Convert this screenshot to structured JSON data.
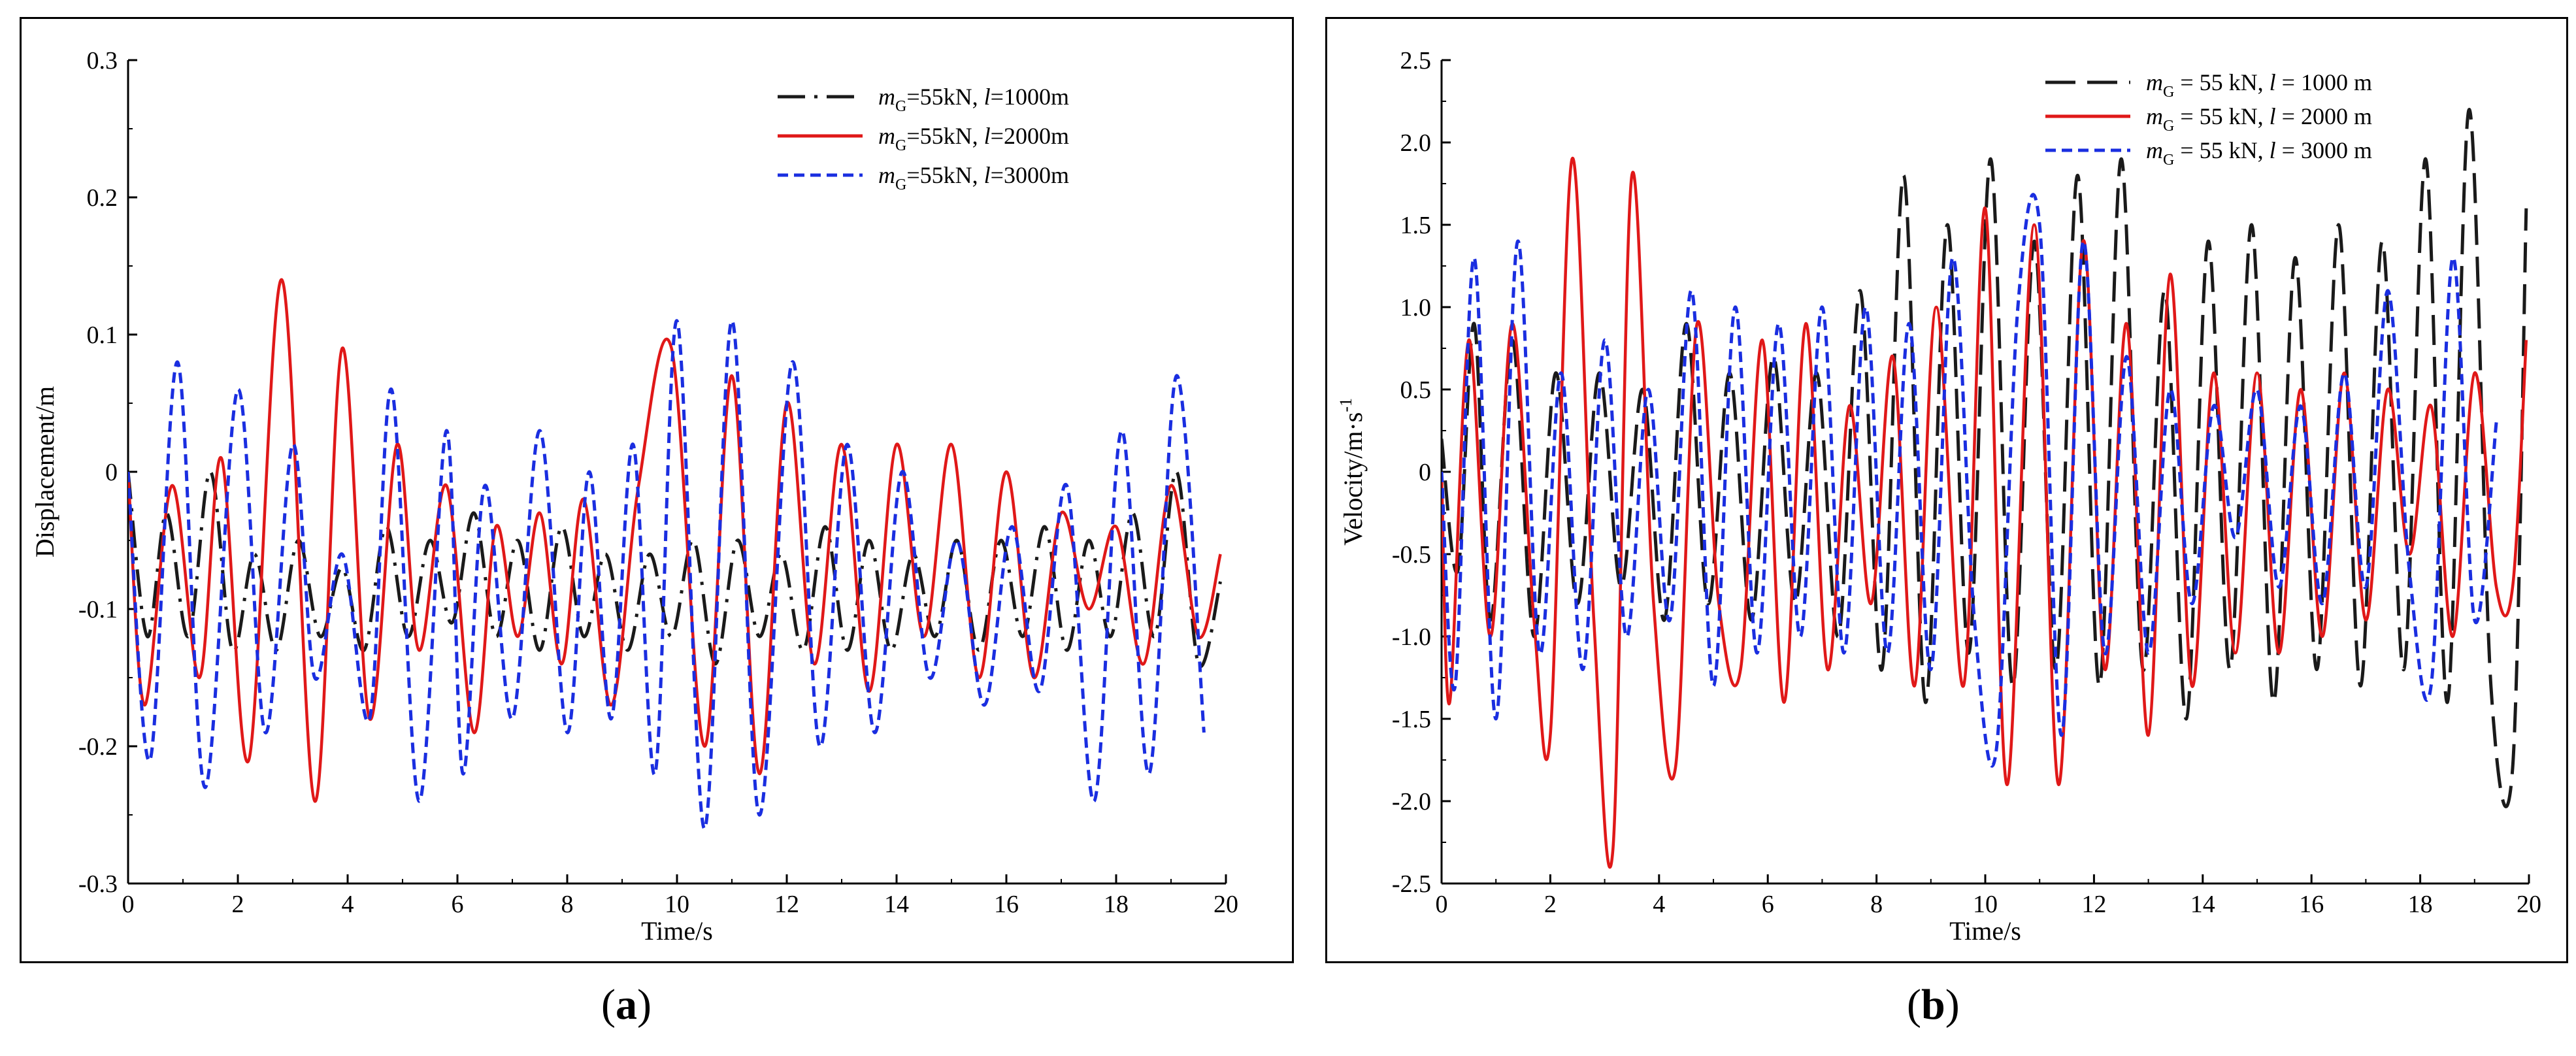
{
  "chart_data": [
    {
      "panel": "a",
      "type": "line",
      "xlabel": "Time/s",
      "ylabel": "Displacement/m",
      "xlim": [
        0,
        20
      ],
      "ylim": [
        -0.3,
        0.3
      ],
      "xticks": [
        "0",
        "2",
        "4",
        "6",
        "8",
        "10",
        "12",
        "14",
        "16",
        "18",
        "20"
      ],
      "yticks": [
        "-0.3",
        "-0.2",
        "-0.1",
        "0",
        "0.1",
        "0.2",
        "0.3"
      ],
      "legend_position": "top-right",
      "series": [
        {
          "name_var": "m",
          "name_sub": "G",
          "name_mid": "=55kN, ",
          "name_l": "l",
          "name_end": "=1000m",
          "color": "#1a1a1a",
          "style": "dashdot",
          "x": [
            0,
            0.35,
            0.7,
            1.1,
            1.5,
            1.9,
            2.3,
            2.7,
            3.1,
            3.5,
            3.9,
            4.3,
            4.7,
            5.1,
            5.5,
            5.9,
            6.3,
            6.7,
            7.1,
            7.5,
            7.9,
            8.3,
            8.7,
            9.1,
            9.5,
            9.9,
            10.3,
            10.7,
            11.1,
            11.5,
            11.9,
            12.3,
            12.7,
            13.1,
            13.5,
            13.9,
            14.3,
            14.7,
            15.1,
            15.5,
            15.9,
            16.3,
            16.7,
            17.1,
            17.5,
            17.9,
            18.3,
            18.7,
            19.1,
            19.5,
            19.9
          ],
          "y": [
            0,
            -0.12,
            -0.03,
            -0.12,
            0,
            -0.13,
            -0.06,
            -0.13,
            -0.05,
            -0.12,
            -0.07,
            -0.13,
            -0.04,
            -0.12,
            -0.05,
            -0.11,
            -0.03,
            -0.12,
            -0.05,
            -0.13,
            -0.04,
            -0.12,
            -0.06,
            -0.13,
            -0.06,
            -0.12,
            -0.05,
            -0.14,
            -0.05,
            -0.12,
            -0.06,
            -0.13,
            -0.04,
            -0.13,
            -0.05,
            -0.13,
            -0.06,
            -0.12,
            -0.05,
            -0.13,
            -0.05,
            -0.12,
            -0.04,
            -0.13,
            -0.05,
            -0.12,
            -0.03,
            -0.12,
            0,
            -0.14,
            -0.08
          ]
        },
        {
          "name_var": "m",
          "name_sub": "G",
          "name_mid": "=55kN, ",
          "name_l": "l",
          "name_end": "=2000m",
          "color": "#e01818",
          "style": "solid",
          "x": [
            0,
            0.3,
            0.8,
            1.3,
            1.7,
            2.2,
            2.8,
            3.4,
            3.9,
            4.4,
            4.9,
            5.3,
            5.8,
            6.3,
            6.7,
            7.1,
            7.5,
            7.9,
            8.3,
            8.8,
            9.3,
            9.9,
            10.5,
            11.0,
            11.5,
            12.0,
            12.5,
            13.0,
            13.5,
            14.0,
            14.5,
            15.0,
            15.5,
            16.0,
            16.5,
            17.0,
            17.5,
            18.0,
            18.5,
            19.0,
            19.5,
            19.9
          ],
          "y": [
            0,
            -0.17,
            -0.01,
            -0.15,
            0.01,
            -0.21,
            0.14,
            -0.24,
            0.09,
            -0.18,
            0.02,
            -0.13,
            -0.01,
            -0.19,
            -0.04,
            -0.12,
            -0.03,
            -0.14,
            -0.02,
            -0.17,
            -0.01,
            0.09,
            -0.2,
            0.07,
            -0.22,
            0.05,
            -0.14,
            0.02,
            -0.16,
            0.02,
            -0.12,
            0.02,
            -0.15,
            0.0,
            -0.15,
            -0.03,
            -0.1,
            -0.04,
            -0.14,
            -0.01,
            -0.12,
            -0.06
          ]
        },
        {
          "name_var": "m",
          "name_sub": "G",
          "name_mid": "=55kN, ",
          "name_l": "l",
          "name_end": "=3000m",
          "color": "#1a2ee0",
          "style": "dashed",
          "x": [
            0,
            0.4,
            0.9,
            1.4,
            2.0,
            2.5,
            3.0,
            3.4,
            3.9,
            4.4,
            4.8,
            5.3,
            5.8,
            6.1,
            6.5,
            7.0,
            7.5,
            8.0,
            8.4,
            8.8,
            9.2,
            9.6,
            10.0,
            10.5,
            11.0,
            11.5,
            12.1,
            12.6,
            13.1,
            13.6,
            14.1,
            14.6,
            15.1,
            15.6,
            16.1,
            16.6,
            17.1,
            17.6,
            18.1,
            18.6,
            19.1,
            19.6
          ],
          "y": [
            0,
            -0.21,
            0.08,
            -0.23,
            0.06,
            -0.19,
            0.02,
            -0.15,
            -0.06,
            -0.18,
            0.06,
            -0.24,
            0.03,
            -0.22,
            -0.01,
            -0.18,
            0.03,
            -0.19,
            0.0,
            -0.18,
            0.02,
            -0.22,
            0.11,
            -0.26,
            0.11,
            -0.25,
            0.08,
            -0.2,
            0.02,
            -0.19,
            0.0,
            -0.15,
            -0.05,
            -0.17,
            -0.04,
            -0.16,
            -0.01,
            -0.24,
            0.03,
            -0.22,
            0.07,
            -0.19
          ]
        }
      ]
    },
    {
      "panel": "b",
      "type": "line",
      "xlabel": "Time/s",
      "ylabel_main": "Velocity/m·s",
      "ylabel_sup": "-1",
      "xlim": [
        0,
        20
      ],
      "ylim": [
        -2.5,
        2.5
      ],
      "xticks": [
        "0",
        "2",
        "4",
        "6",
        "8",
        "10",
        "12",
        "14",
        "16",
        "18",
        "20"
      ],
      "yticks": [
        "-2.5",
        "-2.0",
        "-1.5",
        "-1.0",
        "-0.5",
        "0",
        "0.5",
        "1.0",
        "1.5",
        "2.0",
        "2.5"
      ],
      "legend_position": "top-right",
      "series": [
        {
          "name_var": "m",
          "name_sub": "G",
          "name_mid": " = 55 kN, ",
          "name_l": "l",
          "name_end": " = 1000 m",
          "color": "#1a1a1a",
          "style": "longdash",
          "x": [
            0,
            0.3,
            0.6,
            0.9,
            1.3,
            1.7,
            2.1,
            2.5,
            2.9,
            3.3,
            3.7,
            4.1,
            4.5,
            4.9,
            5.3,
            5.7,
            6.1,
            6.5,
            6.9,
            7.3,
            7.7,
            8.1,
            8.5,
            8.9,
            9.3,
            9.7,
            10.1,
            10.5,
            10.9,
            11.3,
            11.7,
            12.1,
            12.5,
            12.9,
            13.3,
            13.7,
            14.1,
            14.5,
            14.9,
            15.3,
            15.7,
            16.1,
            16.5,
            16.9,
            17.3,
            17.7,
            18.1,
            18.5,
            18.9,
            19.3,
            19.7,
            19.95
          ],
          "y": [
            0.2,
            -0.6,
            0.9,
            -0.9,
            0.8,
            -1.0,
            0.6,
            -0.8,
            0.6,
            -0.7,
            0.5,
            -0.9,
            0.9,
            -0.8,
            0.6,
            -0.9,
            0.7,
            -0.8,
            0.6,
            -1.0,
            1.1,
            -1.2,
            1.8,
            -1.4,
            1.5,
            -1.1,
            1.9,
            -1.3,
            1.4,
            -1.2,
            1.8,
            -1.3,
            1.9,
            -1.2,
            1.1,
            -1.5,
            1.4,
            -1.2,
            1.5,
            -1.4,
            1.3,
            -1.2,
            1.5,
            -1.3,
            1.4,
            -1.2,
            1.9,
            -1.4,
            2.2,
            -1.3,
            -1.8,
            1.6
          ]
        },
        {
          "name_var": "m",
          "name_sub": "G",
          "name_mid": " = 55 kN, ",
          "name_l": "l",
          "name_end": " = 2000 m",
          "color": "#e01818",
          "style": "solid",
          "x": [
            0,
            0.15,
            0.5,
            0.9,
            1.3,
            1.7,
            2.0,
            2.4,
            2.8,
            3.15,
            3.5,
            3.9,
            4.3,
            4.7,
            5.1,
            5.5,
            5.9,
            6.3,
            6.7,
            7.1,
            7.5,
            7.9,
            8.3,
            8.7,
            9.1,
            9.6,
            10.0,
            10.4,
            10.9,
            11.35,
            11.8,
            12.2,
            12.6,
            13.0,
            13.4,
            13.8,
            14.2,
            14.6,
            15.0,
            15.4,
            15.8,
            16.2,
            16.6,
            17.0,
            17.4,
            17.8,
            18.2,
            18.6,
            19.0,
            19.4,
            19.7,
            19.95
          ],
          "y": [
            0,
            -1.4,
            0.8,
            -1.0,
            0.9,
            -0.9,
            -1.6,
            1.9,
            -0.9,
            -2.3,
            1.8,
            -0.8,
            -1.8,
            0.9,
            -0.8,
            -1.2,
            0.8,
            -1.4,
            0.9,
            -1.2,
            0.4,
            -0.8,
            0.7,
            -1.3,
            1.0,
            -1.3,
            1.6,
            -1.9,
            1.5,
            -1.9,
            1.4,
            -1.2,
            0.9,
            -1.6,
            1.2,
            -1.3,
            0.6,
            -1.1,
            0.6,
            -1.1,
            0.5,
            -1.0,
            0.6,
            -0.9,
            0.5,
            -0.5,
            0.4,
            -1.0,
            0.6,
            -0.7,
            -0.7,
            0.8
          ]
        },
        {
          "name_var": "m",
          "name_sub": "G",
          "name_mid": " = 55 kN, ",
          "name_l": "l",
          "name_end": " = 3000 m",
          "color": "#1a2ee0",
          "style": "dashed",
          "x": [
            0,
            0.25,
            0.6,
            1.0,
            1.4,
            1.8,
            2.2,
            2.6,
            3.0,
            3.4,
            3.8,
            4.2,
            4.6,
            5.0,
            5.4,
            5.8,
            6.2,
            6.6,
            7.0,
            7.4,
            7.8,
            8.2,
            8.6,
            9.0,
            9.4,
            9.8,
            10.2,
            10.6,
            11.0,
            11.4,
            11.8,
            12.2,
            12.6,
            13.0,
            13.4,
            13.8,
            14.2,
            14.6,
            15.0,
            15.4,
            15.8,
            16.2,
            16.6,
            17.0,
            17.4,
            17.8,
            18.2,
            18.6,
            19.0,
            19.4
          ],
          "y": [
            0,
            -1.3,
            1.3,
            -1.5,
            1.4,
            -1.1,
            0.6,
            -1.2,
            0.8,
            -1.0,
            0.5,
            -0.9,
            1.1,
            -1.3,
            1.0,
            -1.1,
            0.9,
            -1.0,
            1.0,
            -1.1,
            1.0,
            -1.1,
            0.9,
            -1.2,
            1.3,
            -0.9,
            -1.7,
            1.0,
            1.5,
            -1.6,
            1.4,
            -1.1,
            0.7,
            -1.1,
            0.5,
            -0.8,
            0.4,
            -0.4,
            0.5,
            -0.7,
            0.4,
            -0.8,
            0.6,
            -0.7,
            1.1,
            -0.6,
            -1.3,
            1.3,
            -0.9,
            0.3
          ]
        }
      ]
    }
  ],
  "captions": {
    "a": "a",
    "b": "b"
  }
}
